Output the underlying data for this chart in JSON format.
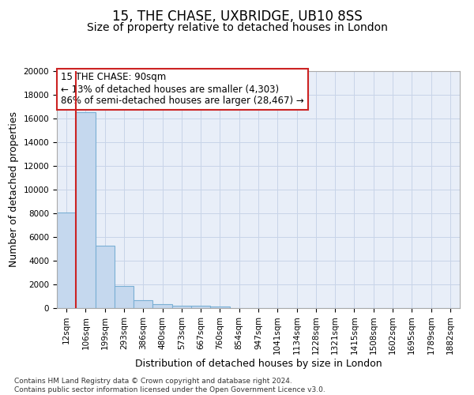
{
  "title": "15, THE CHASE, UXBRIDGE, UB10 8SS",
  "subtitle": "Size of property relative to detached houses in London",
  "xlabel": "Distribution of detached houses by size in London",
  "ylabel": "Number of detached properties",
  "footnote": "Contains HM Land Registry data © Crown copyright and database right 2024.\nContains public sector information licensed under the Open Government Licence v3.0.",
  "bar_labels": [
    "12sqm",
    "106sqm",
    "199sqm",
    "293sqm",
    "386sqm",
    "480sqm",
    "573sqm",
    "667sqm",
    "760sqm",
    "854sqm",
    "947sqm",
    "1041sqm",
    "1134sqm",
    "1228sqm",
    "1321sqm",
    "1415sqm",
    "1508sqm",
    "1602sqm",
    "1695sqm",
    "1789sqm",
    "1882sqm"
  ],
  "bar_values": [
    8100,
    16500,
    5300,
    1850,
    700,
    320,
    200,
    170,
    150,
    0,
    0,
    0,
    0,
    0,
    0,
    0,
    0,
    0,
    0,
    0,
    0
  ],
  "bar_color": "#c5d8ee",
  "bar_edge_color": "#7aafd4",
  "highlight_color": "#cc2222",
  "annotation_line1": "15 THE CHASE: 90sqm",
  "annotation_line2": "← 13% of detached houses are smaller (4,303)",
  "annotation_line3": "86% of semi-detached houses are larger (28,467) →",
  "annotation_box_color": "#ffffff",
  "annotation_box_edge": "#cc2222",
  "ylim": [
    0,
    20000
  ],
  "yticks": [
    0,
    2000,
    4000,
    6000,
    8000,
    10000,
    12000,
    14000,
    16000,
    18000,
    20000
  ],
  "grid_color": "#c8d4e8",
  "bg_color": "#e8eef8",
  "title_fontsize": 12,
  "subtitle_fontsize": 10,
  "label_fontsize": 9,
  "tick_fontsize": 7.5,
  "annot_fontsize": 8.5,
  "footnote_fontsize": 6.5
}
